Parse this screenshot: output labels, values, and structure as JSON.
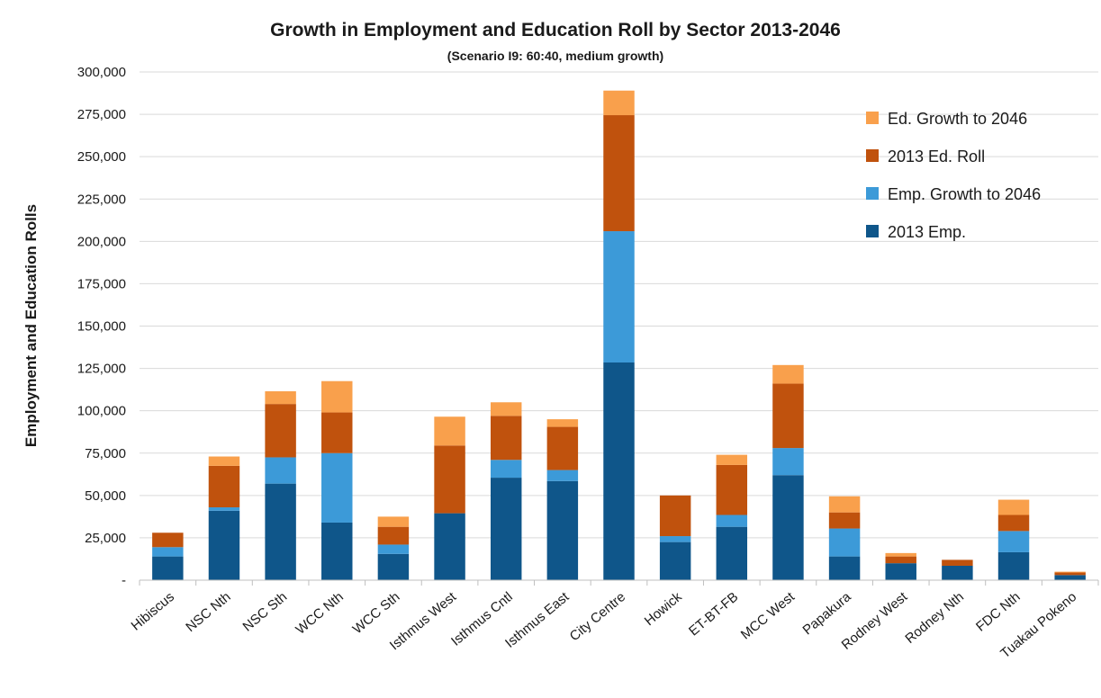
{
  "chart_data": {
    "type": "bar",
    "stacked": true,
    "title": "Growth in Employment and Education Roll by Sector 2013-2046",
    "subtitle": "(Scenario I9: 60:40, medium growth)",
    "xlabel": "",
    "ylabel": "Employment and Education Rolls",
    "ylim": [
      0,
      300000
    ],
    "yticks": [
      0,
      25000,
      50000,
      75000,
      100000,
      125000,
      150000,
      175000,
      200000,
      225000,
      250000,
      275000,
      300000
    ],
    "ytick_labels": [
      "-",
      "25,000",
      "50,000",
      "75,000",
      "100,000",
      "125,000",
      "150,000",
      "175,000",
      "200,000",
      "225,000",
      "250,000",
      "275,000",
      "300,000"
    ],
    "grid": true,
    "legend_position": "top-right",
    "categories": [
      "Hibiscus",
      "NSC Nth",
      "NSC Sth",
      "WCC Nth",
      "WCC Sth",
      "Isthmus West",
      "Isthmus Cntl",
      "Isthmus East",
      "City Centre",
      "Howick",
      "ET-BT-FB",
      "MCC West",
      "Papakura",
      "Rodney West",
      "Rodney Nth",
      "FDC Nth",
      "Tuakau Pokeno"
    ],
    "series": [
      {
        "name": "2013 Emp.",
        "color": "#0f568a",
        "values": [
          14000,
          41000,
          57000,
          34000,
          15500,
          39500,
          60500,
          58500,
          128500,
          22500,
          31500,
          62000,
          14000,
          10000,
          8500,
          16500,
          3000
        ]
      },
      {
        "name": "Emp. Growth to 2046",
        "color": "#3c9ad8",
        "values": [
          5500,
          2000,
          15500,
          41000,
          5500,
          0,
          10500,
          6500,
          77500,
          3500,
          7000,
          16000,
          16500,
          0,
          0,
          12500,
          0
        ]
      },
      {
        "name": "2013 Ed. Roll",
        "color": "#c0520d",
        "values": [
          8500,
          24500,
          31500,
          24000,
          10500,
          40000,
          26000,
          25500,
          68500,
          24000,
          29500,
          38000,
          9500,
          4000,
          3500,
          9500,
          1500
        ]
      },
      {
        "name": "Ed. Growth to 2046",
        "color": "#f9a04c",
        "values": [
          0,
          5500,
          7500,
          18500,
          6000,
          17000,
          8000,
          4500,
          14500,
          0,
          6000,
          11000,
          9500,
          2000,
          0,
          9000,
          500
        ]
      }
    ],
    "legend_order": [
      "Ed. Growth to 2046",
      "2013 Ed. Roll",
      "Emp. Growth to 2046",
      "2013 Emp."
    ]
  }
}
